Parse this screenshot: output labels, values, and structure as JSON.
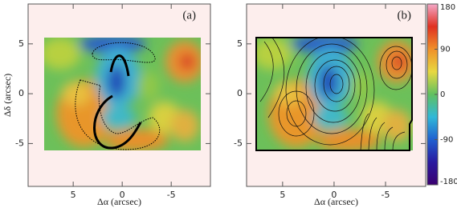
{
  "chart_data": [
    {
      "type": "heatmap",
      "panel_label": "(a)",
      "x_label": "Δα (arcsec)",
      "y_label": "Δδ (arcsec)",
      "xlim": [
        9.6,
        -9
      ],
      "ylim": [
        -9.3,
        9
      ],
      "xticks": [
        5,
        0,
        -5
      ],
      "yticks": [
        5,
        0,
        -5
      ]
    },
    {
      "type": "heatmap",
      "panel_label": "(b)",
      "x_label": "Δα (arcsec)",
      "xlim": [
        8.5,
        -8.9
      ],
      "ylim": [
        -9.3,
        9
      ],
      "xticks": [
        5,
        0,
        -5
      ],
      "yticks": [
        5,
        0,
        -5
      ],
      "colorbar": {
        "clim": [
          -180,
          180
        ],
        "ticks": [
          180,
          90,
          0,
          -90,
          -180
        ],
        "colors": [
          "#3a0070",
          "#2a1aa0",
          "#2060d0",
          "#30b8d8",
          "#60c060",
          "#e8d840",
          "#f0902a",
          "#e03020",
          "#f4a8c8"
        ]
      }
    }
  ]
}
